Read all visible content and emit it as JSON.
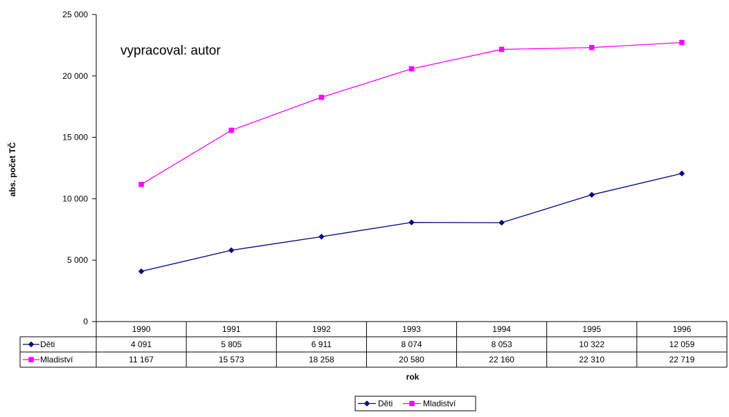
{
  "chart_data": {
    "type": "line",
    "annotation": "vypracoval: autor",
    "xlabel": "rok",
    "ylabel": "abs. počet TČ",
    "ylim": [
      0,
      25000
    ],
    "yticks": [
      0,
      5000,
      10000,
      15000,
      20000,
      25000
    ],
    "ytick_labels": [
      "0",
      "5 000",
      "10 000",
      "15 000",
      "20 000",
      "25 000"
    ],
    "categories": [
      "1990",
      "1991",
      "1992",
      "1993",
      "1994",
      "1995",
      "1996"
    ],
    "series": [
      {
        "name": "Děti",
        "color": "#000080",
        "marker": "diamond",
        "values": [
          4091,
          5805,
          6911,
          8074,
          8053,
          10322,
          12059
        ],
        "value_labels": [
          "4 091",
          "5 805",
          "6 911",
          "8 074",
          "8 053",
          "10 322",
          "12 059"
        ]
      },
      {
        "name": "Mladiství",
        "color": "#FF00FF",
        "marker": "square",
        "values": [
          11167,
          15573,
          18258,
          20580,
          22160,
          22310,
          22719
        ],
        "value_labels": [
          "11 167",
          "15 573",
          "18 258",
          "20 580",
          "22 160",
          "22 310",
          "22 719"
        ]
      }
    ],
    "grid": false,
    "data_table": true,
    "legend_position": "bottom"
  }
}
